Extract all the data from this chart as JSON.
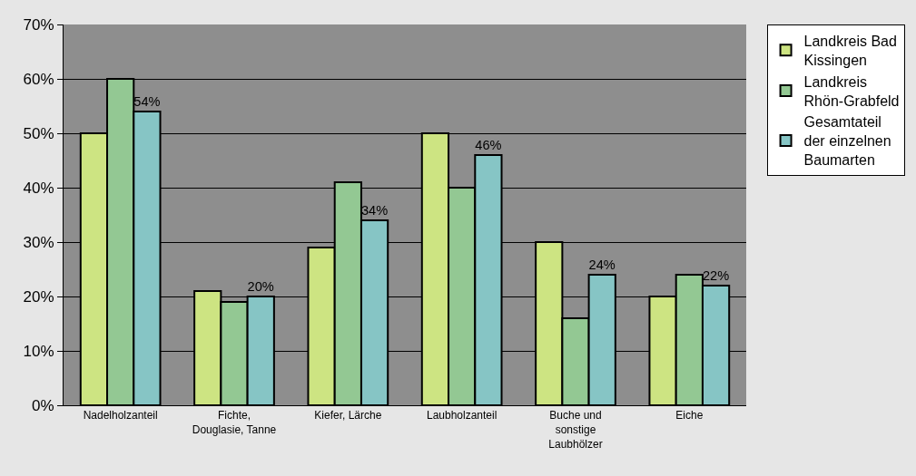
{
  "chart_data": {
    "type": "bar",
    "categories": [
      "Nadelholzanteil",
      "Fichte, Douglasie, Tanne",
      "Kiefer, Lärche",
      "Laubholzanteil",
      "Buche und sonstige Laubhölzer",
      "Eiche"
    ],
    "series": [
      {
        "name": "Landkreis Bad Kissingen",
        "color": "#cde482",
        "values": [
          50,
          21,
          29,
          50,
          30,
          20
        ]
      },
      {
        "name": "Landkreis Rhön-Grabfeld",
        "color": "#93c893",
        "values": [
          60,
          19,
          41,
          40,
          16,
          24
        ]
      },
      {
        "name": "Gesamtateil der einzelnen Baumarten",
        "color": "#86c5c5",
        "values": [
          54,
          20,
          34,
          46,
          24,
          22
        ],
        "value_labels": [
          "54%",
          "20%",
          "34%",
          "46%",
          "24%",
          "22%"
        ]
      }
    ],
    "ylim": [
      0,
      70
    ],
    "yticks": [
      {
        "value": 0,
        "label": "0%"
      },
      {
        "value": 10,
        "label": "10%"
      },
      {
        "value": 20,
        "label": "20%"
      },
      {
        "value": 30,
        "label": "30%"
      },
      {
        "value": 40,
        "label": "40%"
      },
      {
        "value": 50,
        "label": "50%"
      },
      {
        "value": 60,
        "label": "60%"
      },
      {
        "value": 70,
        "label": "70%"
      }
    ],
    "grid": "y",
    "legend": "right"
  }
}
